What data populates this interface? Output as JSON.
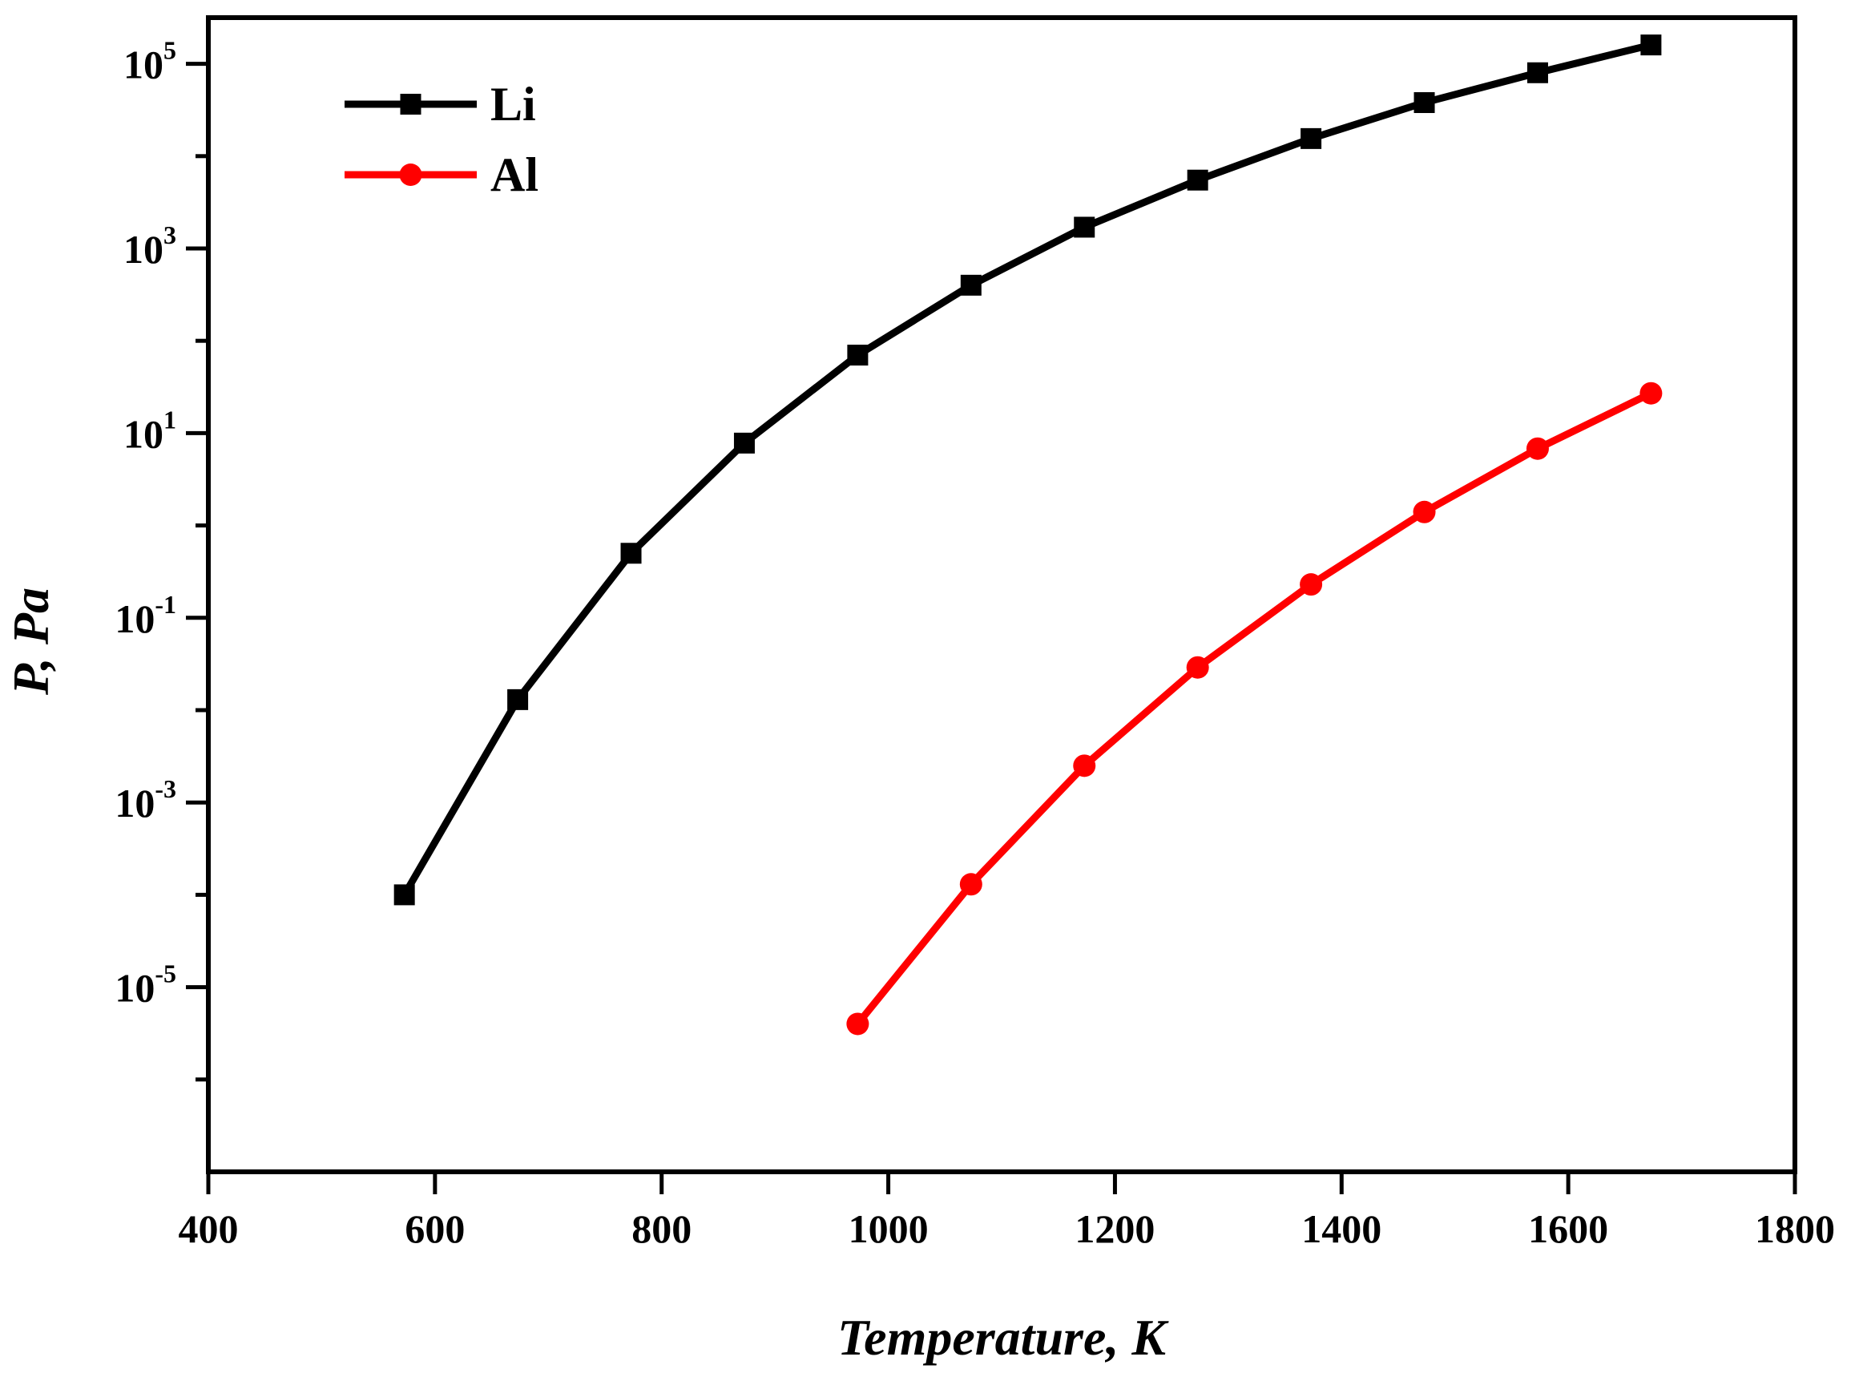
{
  "chart_data": {
    "type": "line",
    "title": "",
    "xlabel": "Temperature, K",
    "ylabel": "P, Pa",
    "xlim": [
      400,
      1800
    ],
    "ylim_log10": [
      -7,
      5.5
    ],
    "y_scale": "log",
    "grid": false,
    "legend_position": "top-left",
    "x_ticks": [
      400,
      600,
      800,
      1000,
      1200,
      1400,
      1600,
      1800
    ],
    "x_tick_labels": [
      "400",
      "600",
      "800",
      "1000",
      "1200",
      "1400",
      "1600",
      "1800"
    ],
    "y_major_ticks_log10": [
      -5,
      -3,
      -1,
      1,
      3,
      5
    ],
    "y_tick_labels": [
      {
        "base": "10",
        "exp": "-5"
      },
      {
        "base": "10",
        "exp": "-3"
      },
      {
        "base": "10",
        "exp": "-1"
      },
      {
        "base": "10",
        "exp": "1"
      },
      {
        "base": "10",
        "exp": "3"
      },
      {
        "base": "10",
        "exp": "5"
      }
    ],
    "y_minor_ticks_log10": [
      -6,
      -4,
      -2,
      0,
      2,
      4
    ],
    "series": [
      {
        "name": "Li",
        "color": "#000000",
        "marker": "square",
        "x": [
          573,
          673,
          773,
          873,
          973,
          1073,
          1173,
          1273,
          1373,
          1473,
          1573,
          1673
        ],
        "y": [
          0.0001,
          0.013,
          0.5,
          7.8,
          70,
          400,
          1700,
          5500,
          15500,
          38000,
          80000,
          160000
        ]
      },
      {
        "name": "Al",
        "color": "#ff0000",
        "marker": "circle",
        "x": [
          973,
          1073,
          1173,
          1273,
          1373,
          1473,
          1573,
          1673
        ],
        "y": [
          4e-06,
          0.00013,
          0.0025,
          0.029,
          0.23,
          1.4,
          6.8,
          27
        ]
      }
    ]
  }
}
